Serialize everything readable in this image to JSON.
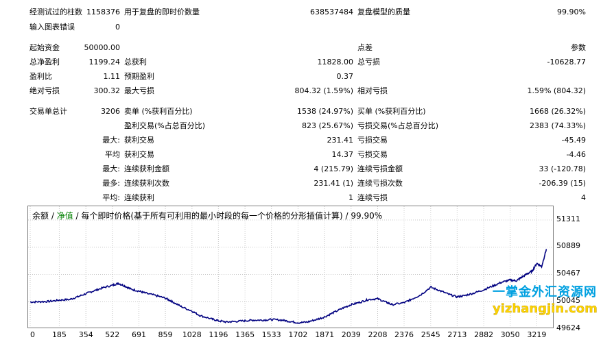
{
  "summary": {
    "row1": {
      "bars_label": "经测试过的柱数",
      "bars_value": "1158376",
      "ticks_label": "用于复盘的即时价数量",
      "ticks_value": "638537484",
      "quality_label": "复盘模型的质量",
      "quality_value": "99.90%"
    },
    "row2": {
      "errors_label": "输入图表错误",
      "errors_value": "0"
    },
    "row3": {
      "deposit_label": "起始资金",
      "deposit_value": "50000.00",
      "spread_label": "点差",
      "spread_value": "参数"
    },
    "row4": {
      "net_label": "总净盈利",
      "net_value": "1199.24",
      "gross_profit_label": "总获利",
      "gross_profit_value": "11828.00",
      "gross_loss_label": "总亏损",
      "gross_loss_value": "-10628.77"
    },
    "row5": {
      "pf_label": "盈利比",
      "pf_value": "1.11",
      "payoff_label": "预期盈利",
      "payoff_value": "0.37"
    },
    "row6": {
      "abs_dd_label": "绝对亏损",
      "abs_dd_value": "300.32",
      "max_dd_label": "最大亏损",
      "max_dd_value": "804.32 (1.59%)",
      "rel_dd_label": "相对亏损",
      "rel_dd_value": "1.59% (804.32)"
    },
    "row7": {
      "total_label": "交易单总计",
      "total_value": "3206",
      "short_label": "卖单 (%获利百分比)",
      "short_value": "1538 (24.97%)",
      "long_label": "买单 (%获利百分比)",
      "long_value": "1668 (26.32%)"
    },
    "row8": {
      "win_label": "盈利交易(%占总百分比)",
      "win_value": "823 (25.67%)",
      "loss_label": "亏损交易(%占总百分比)",
      "loss_value": "2383 (74.33%)"
    },
    "row9": {
      "prefix": "最大:",
      "win_label": "获利交易",
      "win_value": "231.41",
      "loss_label": "亏损交易",
      "loss_value": "-45.49"
    },
    "row10": {
      "prefix": "平均",
      "win_label": "获利交易",
      "win_value": "14.37",
      "loss_label": "亏损交易",
      "loss_value": "-4.46"
    },
    "row11": {
      "prefix": "最大:",
      "win_label": "连续获利金额",
      "win_value": "4 (215.79)",
      "loss_label": "连续亏损金额",
      "loss_value": "33 (-120.78)"
    },
    "row12": {
      "prefix": "最多:",
      "win_label": "连续获利次数",
      "win_value": "231.41 (1)",
      "loss_label": "连续亏损次数",
      "loss_value": "-206.39 (15)"
    },
    "row13": {
      "prefix": "平均:",
      "win_label": "连续获利",
      "win_value": "1",
      "loss_label": "连续亏损",
      "loss_value": "4"
    }
  },
  "chart_legend": {
    "balance": "余额",
    "sep1": " / ",
    "equity": "净值",
    "sep2": " / ",
    "text": "每个即时价格(基于所有可利用的最小时段的每一个价格的分形插值计算) / 99.90%"
  },
  "watermark": {
    "line1": "一掌金外汇资源网",
    "line2": "yizhangjin.com"
  },
  "colors": {
    "line": "#000080",
    "equity_legend": "#008000",
    "grid": "#c8c8c8"
  },
  "chart_data": {
    "type": "line",
    "x_ticks": [
      0,
      185,
      354,
      522,
      691,
      859,
      1028,
      1196,
      1365,
      1533,
      1702,
      1871,
      2039,
      2208,
      2376,
      2545,
      2713,
      2882,
      3050,
      3219
    ],
    "y_ticks": [
      51311,
      50889,
      50467,
      50045,
      49624
    ],
    "ylim": [
      49624,
      51311
    ],
    "series": [
      {
        "x": [
          0,
          60,
          120,
          185,
          250,
          300,
          354,
          400,
          460,
          522,
          560,
          600,
          640,
          691,
          730,
          800,
          859,
          900,
          960,
          1028,
          1080,
          1150,
          1196,
          1250,
          1300,
          1365,
          1420,
          1480,
          1533,
          1600,
          1650,
          1702,
          1760,
          1820,
          1871,
          1930,
          1990,
          2039,
          2100,
          2150,
          2208,
          2260,
          2300,
          2376,
          2420,
          2480,
          2545,
          2600,
          2660,
          2713,
          2760,
          2820,
          2882,
          2940,
          3000,
          3050,
          3090,
          3120,
          3160,
          3190,
          3219,
          3250,
          3280
        ],
        "y": [
          50040,
          50045,
          50050,
          50070,
          50080,
          50120,
          50170,
          50210,
          50260,
          50300,
          50330,
          50290,
          50240,
          50210,
          50180,
          50140,
          50100,
          50050,
          49970,
          49900,
          49830,
          49780,
          49750,
          49730,
          49740,
          49750,
          49760,
          49760,
          49770,
          49760,
          49740,
          49720,
          49730,
          49770,
          49810,
          49880,
          49950,
          50000,
          50040,
          50080,
          50090,
          50040,
          50000,
          50030,
          50080,
          50150,
          50270,
          50220,
          50160,
          50120,
          50140,
          50180,
          50230,
          50290,
          50350,
          50380,
          50370,
          50420,
          50480,
          50520,
          50640,
          50590,
          50860
        ]
      }
    ]
  }
}
